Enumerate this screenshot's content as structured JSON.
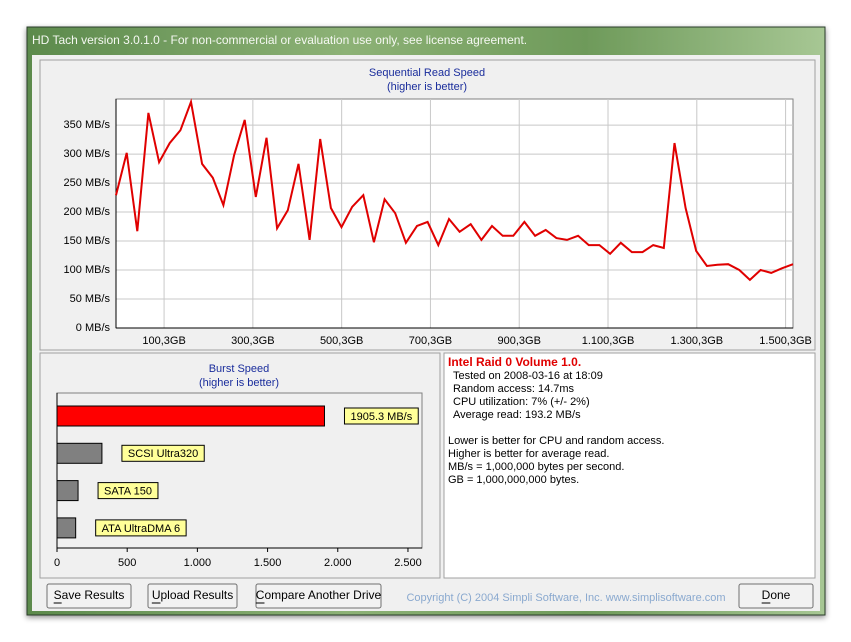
{
  "window": {
    "title": "HD Tach version 3.0.1.0  - For non-commercial or evaluation use only, see license agreement."
  },
  "chart_data": [
    {
      "type": "line",
      "title": "Sequential Read Speed",
      "subtitle": "(higher is better)",
      "color": "#e00000",
      "x": [
        -8,
        16,
        40,
        65,
        89,
        113,
        137,
        161,
        186,
        210,
        234,
        258,
        282,
        307,
        331,
        355,
        379,
        403,
        428,
        452,
        476,
        500,
        524,
        549,
        573,
        597,
        621,
        645,
        670,
        694,
        718,
        742,
        766,
        791,
        815,
        839,
        863,
        887,
        912,
        936,
        960,
        984,
        1008,
        1033,
        1057,
        1081,
        1105,
        1129,
        1154,
        1178,
        1202,
        1226,
        1250,
        1275,
        1299,
        1323,
        1347,
        1371,
        1396,
        1420,
        1444,
        1468,
        1492,
        1517
      ],
      "values": [
        229,
        302,
        167,
        371,
        286,
        319,
        341,
        390,
        283,
        259,
        212,
        298,
        359,
        226,
        328,
        172,
        203,
        283,
        152,
        326,
        207,
        174,
        209,
        229,
        148,
        222,
        198,
        147,
        176,
        183,
        143,
        188,
        166,
        179,
        152,
        176,
        159,
        159,
        183,
        159,
        169,
        155,
        152,
        159,
        143,
        143,
        128,
        147,
        131,
        131,
        143,
        138,
        319,
        207,
        133,
        107,
        109,
        110,
        100,
        83,
        100,
        95,
        103,
        110
      ],
      "xlim": [
        -8,
        1517
      ],
      "xticks": [
        {
          "value": 100.3,
          "label": "100,3GB"
        },
        {
          "value": 300.3,
          "label": "300,3GB"
        },
        {
          "value": 500.3,
          "label": "500,3GB"
        },
        {
          "value": 700.3,
          "label": "700,3GB"
        },
        {
          "value": 900.3,
          "label": "900,3GB"
        },
        {
          "value": 1100.3,
          "label": "1.100,3GB"
        },
        {
          "value": 1300.3,
          "label": "1.300,3GB"
        },
        {
          "value": 1500.3,
          "label": "1.500,3GB"
        }
      ],
      "ylim": [
        0,
        395
      ],
      "yticks": [
        {
          "value": 0,
          "label": "0 MB/s"
        },
        {
          "value": 50,
          "label": "50 MB/s"
        },
        {
          "value": 100,
          "label": "100 MB/s"
        },
        {
          "value": 150,
          "label": "150 MB/s"
        },
        {
          "value": 200,
          "label": "200 MB/s"
        },
        {
          "value": 250,
          "label": "250 MB/s"
        },
        {
          "value": 300,
          "label": "300 MB/s"
        },
        {
          "value": 350,
          "label": "350 MB/s"
        }
      ],
      "grid": true
    },
    {
      "type": "bar",
      "orientation": "horizontal",
      "title": "Burst Speed",
      "subtitle": "(higher is better)",
      "categories": [
        null,
        "SCSI Ultra320",
        "SATA 150",
        "ATA UltraDMA 6"
      ],
      "values": [
        1905.3,
        320,
        150,
        133
      ],
      "value_labels": [
        "1905.3 MB/s",
        null,
        null,
        null
      ],
      "colors": [
        "#ff0000",
        "#808080",
        "#808080",
        "#808080"
      ],
      "xlim": [
        0,
        2600
      ],
      "xticks": [
        0,
        500,
        {
          "value": 1000,
          "label": "1.000"
        },
        {
          "value": 1500,
          "label": "1.500"
        },
        {
          "value": 2000,
          "label": "2.000"
        },
        {
          "value": 2500,
          "label": "2.500"
        }
      ],
      "grid": false
    }
  ],
  "info": {
    "heading": "Intel Raid 0 Volume 1.0.",
    "lines": [
      "Tested on 2008-03-16 at 18:09",
      "Random access: 14.7ms",
      "CPU utilization: 7% (+/- 2%)",
      "Average read: 193.2 MB/s"
    ],
    "notes": [
      "Lower is better for CPU and random access.",
      "Higher is better for average read.",
      "MB/s = 1,000,000 bytes per second.",
      "GB = 1,000,000,000 bytes."
    ]
  },
  "buttons": [
    "Save Results",
    "Upload Results",
    "Compare Another Drive",
    "Done"
  ],
  "copyright": "Copyright (C) 2004 Simpli Software, Inc. www.simplisoftware.com"
}
